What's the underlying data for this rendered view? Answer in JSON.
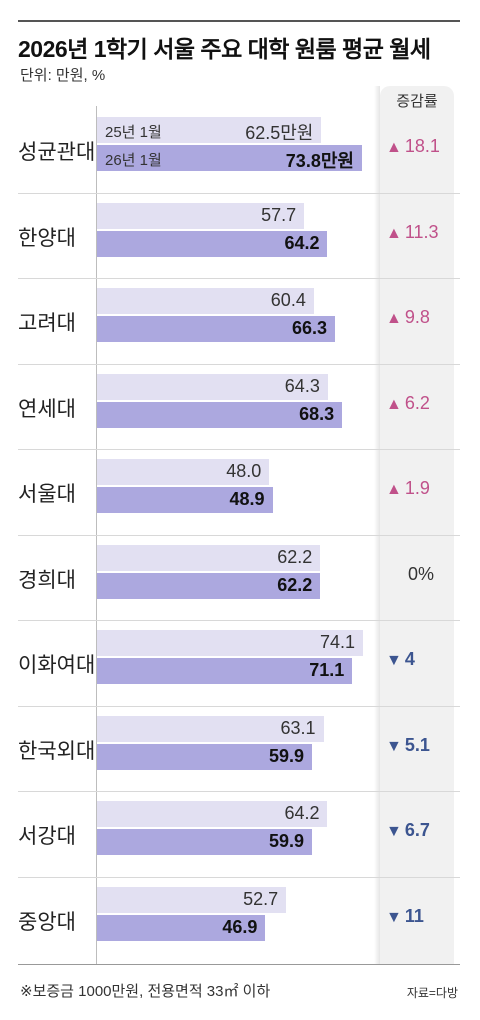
{
  "header": {
    "title": "2026년 1학기 서울 주요 대학 원룸 평균 월세",
    "unit": "단위: 만원, %",
    "rate_header": "증감률"
  },
  "footer": {
    "note": "※보증금 1000만원, 전용면적 33㎡ 이하",
    "source": "자료=다방"
  },
  "colors": {
    "prev": "#e2e0f2",
    "curr": "#aca8df",
    "up": "#c0518a",
    "down": "#3c5590"
  },
  "chart_data": {
    "type": "bar",
    "title": "2026년 1학기 서울 주요 대학 원룸 평균 월세",
    "unit": "단위: 만원, %",
    "categories": [
      "성균관대",
      "한양대",
      "고려대",
      "연세대",
      "서울대",
      "경희대",
      "이화여대",
      "한국외대",
      "서강대",
      "중앙대"
    ],
    "series": [
      {
        "name": "25년 1월",
        "values": [
          62.5,
          57.7,
          60.4,
          64.3,
          48.0,
          62.2,
          74.1,
          63.1,
          64.2,
          52.7
        ]
      },
      {
        "name": "26년 1월",
        "values": [
          73.8,
          64.2,
          66.3,
          68.3,
          48.9,
          62.2,
          71.1,
          59.9,
          59.9,
          46.9
        ]
      }
    ],
    "value_labels": {
      "prev": [
        "62.5만원",
        "57.7",
        "60.4",
        "64.3",
        "48.0",
        "62.2",
        "74.1",
        "63.1",
        "64.2",
        "52.7"
      ],
      "curr": [
        "73.8만원",
        "64.2",
        "66.3",
        "68.3",
        "48.9",
        "62.2",
        "71.1",
        "59.9",
        "59.9",
        "46.9"
      ]
    },
    "change": {
      "name": "증감률",
      "labels": [
        "18.1",
        "11.3",
        "9.8",
        "6.2",
        "1.9",
        "0%",
        "4",
        "5.1",
        "6.7",
        "11"
      ],
      "direction": [
        "up",
        "up",
        "up",
        "up",
        "up",
        "none",
        "down",
        "down",
        "down",
        "down"
      ]
    },
    "xlim": [
      0,
      80
    ],
    "grid": false,
    "legend": "inline-first-row"
  }
}
